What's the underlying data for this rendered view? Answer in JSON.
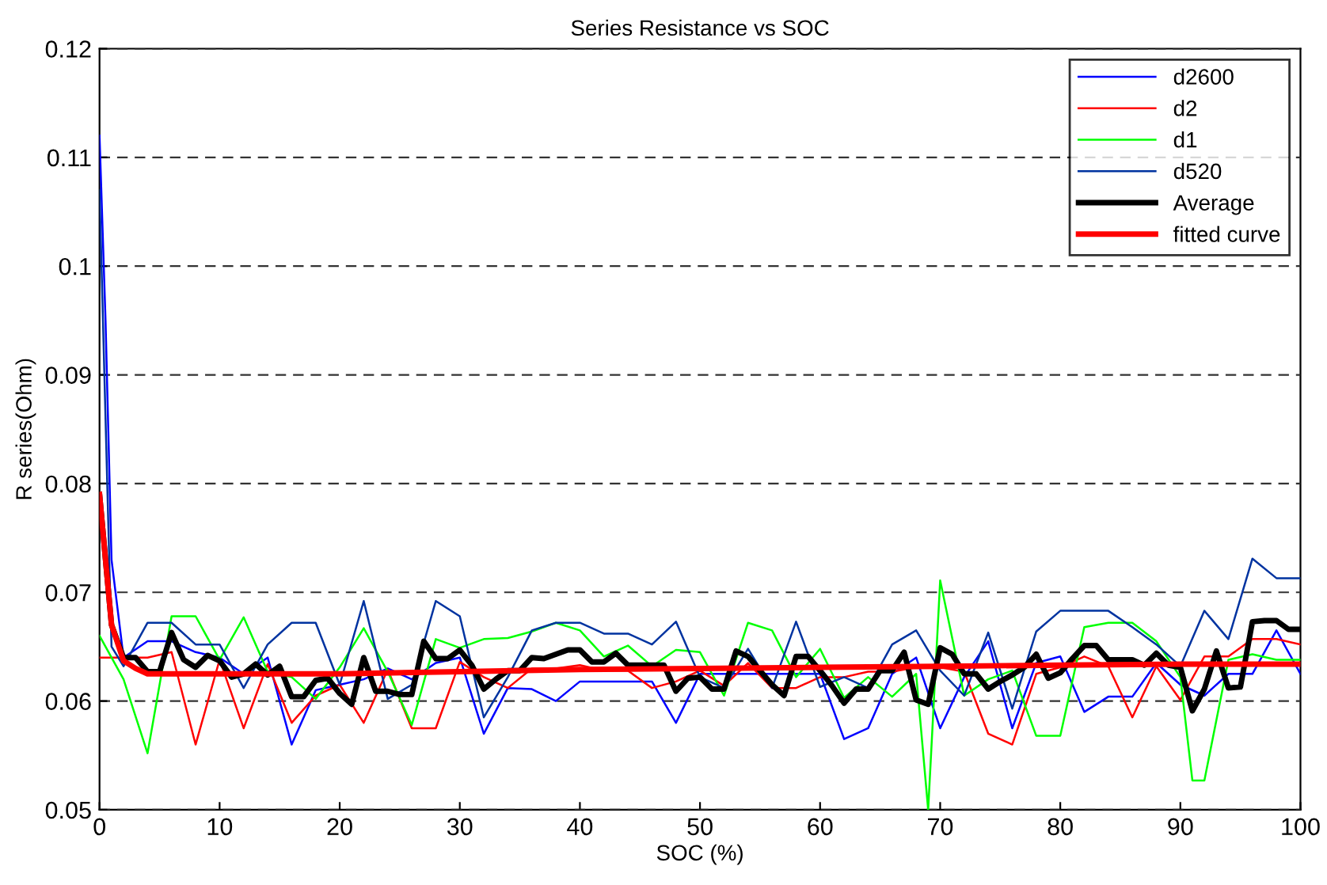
{
  "chart_data": {
    "type": "line",
    "title": "Series Resistance vs SOC",
    "xlabel": "SOC (%)",
    "ylabel": "R series(Ohm)",
    "xlim": [
      0,
      100
    ],
    "ylim": [
      0.05,
      0.12
    ],
    "xticks": [
      0,
      10,
      20,
      30,
      40,
      50,
      60,
      70,
      80,
      90,
      100
    ],
    "yticks": [
      0.05,
      0.06,
      0.07,
      0.08,
      0.09,
      0.1,
      0.11,
      0.12
    ],
    "grid": "y",
    "legend": "top right",
    "line_style": "solid",
    "marker": "none",
    "series": [
      {
        "name": "d2600",
        "color": "#0000ff",
        "x": [
          0,
          0.5,
          1,
          2,
          4,
          6,
          8,
          10,
          12,
          14,
          16,
          18,
          20,
          22,
          24,
          26,
          28,
          30,
          32,
          34,
          36,
          38,
          40,
          42,
          44,
          46,
          48,
          50,
          52,
          54,
          56,
          58,
          60,
          62,
          64,
          66,
          68,
          70,
          72,
          74,
          76,
          78,
          80,
          82,
          84,
          86,
          88,
          90,
          92,
          94,
          96,
          98,
          100
        ],
        "values": [
          0.112,
          0.095,
          0.073,
          0.064,
          0.0655,
          0.0655,
          0.0645,
          0.064,
          0.0625,
          0.064,
          0.056,
          0.061,
          0.0615,
          0.062,
          0.063,
          0.062,
          0.0635,
          0.064,
          0.057,
          0.0612,
          0.0611,
          0.06,
          0.0618,
          0.0618,
          0.0618,
          0.0618,
          0.058,
          0.0625,
          0.0625,
          0.0625,
          0.0625,
          0.0625,
          0.0625,
          0.0565,
          0.0575,
          0.0625,
          0.064,
          0.0575,
          0.0622,
          0.0655,
          0.0575,
          0.0635,
          0.0641,
          0.059,
          0.0604,
          0.0604,
          0.0635,
          0.0615,
          0.0605,
          0.0625,
          0.0625,
          0.0665,
          0.0625
        ]
      },
      {
        "name": "d2",
        "color": "#ff0000",
        "x": [
          0,
          2,
          4,
          6,
          8,
          10,
          12,
          14,
          16,
          18,
          20,
          22,
          24,
          26,
          28,
          30,
          32,
          34,
          36,
          38,
          40,
          42,
          44,
          46,
          48,
          50,
          52,
          54,
          56,
          58,
          60,
          62,
          64,
          66,
          68,
          70,
          72,
          74,
          76,
          78,
          80,
          82,
          84,
          86,
          88,
          90,
          92,
          94,
          96,
          98,
          100
        ],
        "values": [
          0.064,
          0.064,
          0.064,
          0.0645,
          0.056,
          0.0638,
          0.0575,
          0.0634,
          0.058,
          0.0605,
          0.0615,
          0.058,
          0.0629,
          0.0575,
          0.0575,
          0.0636,
          0.0622,
          0.0612,
          0.063,
          0.063,
          0.0633,
          0.0628,
          0.0628,
          0.0612,
          0.0618,
          0.0628,
          0.0614,
          0.0635,
          0.0612,
          0.0612,
          0.0622,
          0.0622,
          0.0627,
          0.0627,
          0.0631,
          0.0631,
          0.0627,
          0.057,
          0.056,
          0.0625,
          0.0631,
          0.0641,
          0.0632,
          0.0585,
          0.0632,
          0.0601,
          0.0641,
          0.0641,
          0.0657,
          0.0657,
          0.0652
        ]
      },
      {
        "name": "d1",
        "color": "#00ff00",
        "x": [
          0,
          2,
          4,
          6,
          8,
          10,
          12,
          14,
          16,
          18,
          20,
          22,
          24,
          26,
          28,
          30,
          32,
          34,
          36,
          38,
          40,
          42,
          44,
          46,
          48,
          50,
          52,
          54,
          56,
          58,
          60,
          62,
          64,
          66,
          68,
          69,
          70,
          72,
          74,
          76,
          78,
          80,
          82,
          84,
          86,
          88,
          90,
          91,
          92,
          94,
          96,
          98,
          100
        ],
        "values": [
          0.066,
          0.062,
          0.0552,
          0.0678,
          0.0678,
          0.0638,
          0.0677,
          0.0627,
          0.0622,
          0.0602,
          0.0631,
          0.0667,
          0.0627,
          0.0578,
          0.0657,
          0.0649,
          0.0657,
          0.0658,
          0.0664,
          0.0672,
          0.0665,
          0.0641,
          0.0651,
          0.0632,
          0.0647,
          0.0645,
          0.0605,
          0.0672,
          0.0665,
          0.0622,
          0.0648,
          0.0603,
          0.0622,
          0.0604,
          0.0625,
          0.05,
          0.0711,
          0.0605,
          0.062,
          0.0628,
          0.0568,
          0.0568,
          0.0668,
          0.0672,
          0.0672,
          0.0655,
          0.0622,
          0.0527,
          0.0527,
          0.0638,
          0.0643,
          0.0638,
          0.0638
        ]
      },
      {
        "name": "d520",
        "color": "#0033a0",
        "x": [
          0,
          0.5,
          1,
          2,
          4,
          6,
          8,
          10,
          12,
          14,
          16,
          18,
          20,
          22,
          24,
          26,
          28,
          30,
          32,
          34,
          36,
          38,
          40,
          42,
          44,
          46,
          48,
          50,
          52,
          54,
          56,
          58,
          60,
          62,
          64,
          66,
          68,
          70,
          72,
          74,
          76,
          78,
          80,
          82,
          84,
          86,
          88,
          90,
          92,
          94,
          96,
          98,
          100
        ],
        "values": [
          0.107,
          0.086,
          0.065,
          0.0632,
          0.0672,
          0.0672,
          0.0652,
          0.0652,
          0.0612,
          0.0652,
          0.0672,
          0.0672,
          0.0615,
          0.0692,
          0.0602,
          0.0615,
          0.0692,
          0.0678,
          0.0585,
          0.0622,
          0.0665,
          0.0672,
          0.0672,
          0.0662,
          0.0662,
          0.0652,
          0.0673,
          0.0622,
          0.0612,
          0.0648,
          0.0612,
          0.0673,
          0.0613,
          0.0622,
          0.0612,
          0.0652,
          0.0665,
          0.0628,
          0.0605,
          0.0663,
          0.0593,
          0.0664,
          0.0683,
          0.0683,
          0.0683,
          0.0668,
          0.0652,
          0.0632,
          0.0683,
          0.0657,
          0.0731,
          0.0713,
          0.0713
        ]
      },
      {
        "name": "Average",
        "color": "#000000",
        "x": [
          0,
          0.5,
          1,
          2,
          3,
          4,
          5,
          6,
          7,
          8,
          9,
          10,
          11,
          12,
          13,
          14,
          15,
          16,
          17,
          18,
          19,
          20,
          21,
          22,
          23,
          24,
          25,
          26,
          27,
          28,
          29,
          30,
          31,
          32,
          33,
          34,
          35,
          36,
          37,
          38,
          39,
          40,
          41,
          42,
          43,
          44,
          45,
          46,
          47,
          48,
          49,
          50,
          51,
          52,
          53,
          54,
          55,
          56,
          57,
          58,
          59,
          60,
          61,
          62,
          63,
          64,
          65,
          66,
          67,
          68,
          69,
          70,
          71,
          72,
          73,
          74,
          75,
          76,
          77,
          78,
          79,
          80,
          81,
          82,
          83,
          84,
          85,
          86,
          87,
          88,
          89,
          90,
          91,
          92,
          93,
          94,
          95,
          96,
          97,
          98,
          99,
          100
        ],
        "values": [
          0.079,
          0.073,
          0.067,
          0.064,
          0.064,
          0.0627,
          0.0627,
          0.0663,
          0.0638,
          0.0631,
          0.0642,
          0.0637,
          0.0622,
          0.0625,
          0.0634,
          0.0624,
          0.0632,
          0.0604,
          0.0604,
          0.0619,
          0.0621,
          0.0607,
          0.0597,
          0.064,
          0.0609,
          0.0609,
          0.0606,
          0.0606,
          0.0655,
          0.0639,
          0.0639,
          0.0647,
          0.0633,
          0.0611,
          0.062,
          0.0628,
          0.0628,
          0.064,
          0.0639,
          0.0643,
          0.0647,
          0.0647,
          0.0636,
          0.0636,
          0.0644,
          0.0633,
          0.0633,
          0.0633,
          0.0633,
          0.0609,
          0.0621,
          0.0622,
          0.0611,
          0.0611,
          0.0646,
          0.0641,
          0.0628,
          0.0615,
          0.0605,
          0.0641,
          0.0641,
          0.0628,
          0.0614,
          0.0598,
          0.0611,
          0.0611,
          0.0628,
          0.0628,
          0.0645,
          0.0601,
          0.0597,
          0.0649,
          0.0643,
          0.0625,
          0.0625,
          0.0611,
          0.0618,
          0.0624,
          0.0631,
          0.0643,
          0.0621,
          0.0626,
          0.0639,
          0.0651,
          0.0651,
          0.0638,
          0.0638,
          0.0638,
          0.0633,
          0.0644,
          0.0633,
          0.0631,
          0.0591,
          0.0611,
          0.0646,
          0.0612,
          0.0613,
          0.0673,
          0.0674,
          0.0674,
          0.0666,
          0.0666
        ]
      },
      {
        "name": "fitted curve",
        "color": "#ff0000",
        "x": [
          0,
          0.5,
          1,
          2,
          3,
          4,
          10,
          20,
          30,
          40,
          50,
          60,
          70,
          80,
          90,
          100
        ],
        "values": [
          0.079,
          0.073,
          0.067,
          0.0637,
          0.063,
          0.0625,
          0.0625,
          0.0625,
          0.0627,
          0.0629,
          0.063,
          0.0631,
          0.0632,
          0.0633,
          0.0634,
          0.0634
        ]
      }
    ]
  }
}
